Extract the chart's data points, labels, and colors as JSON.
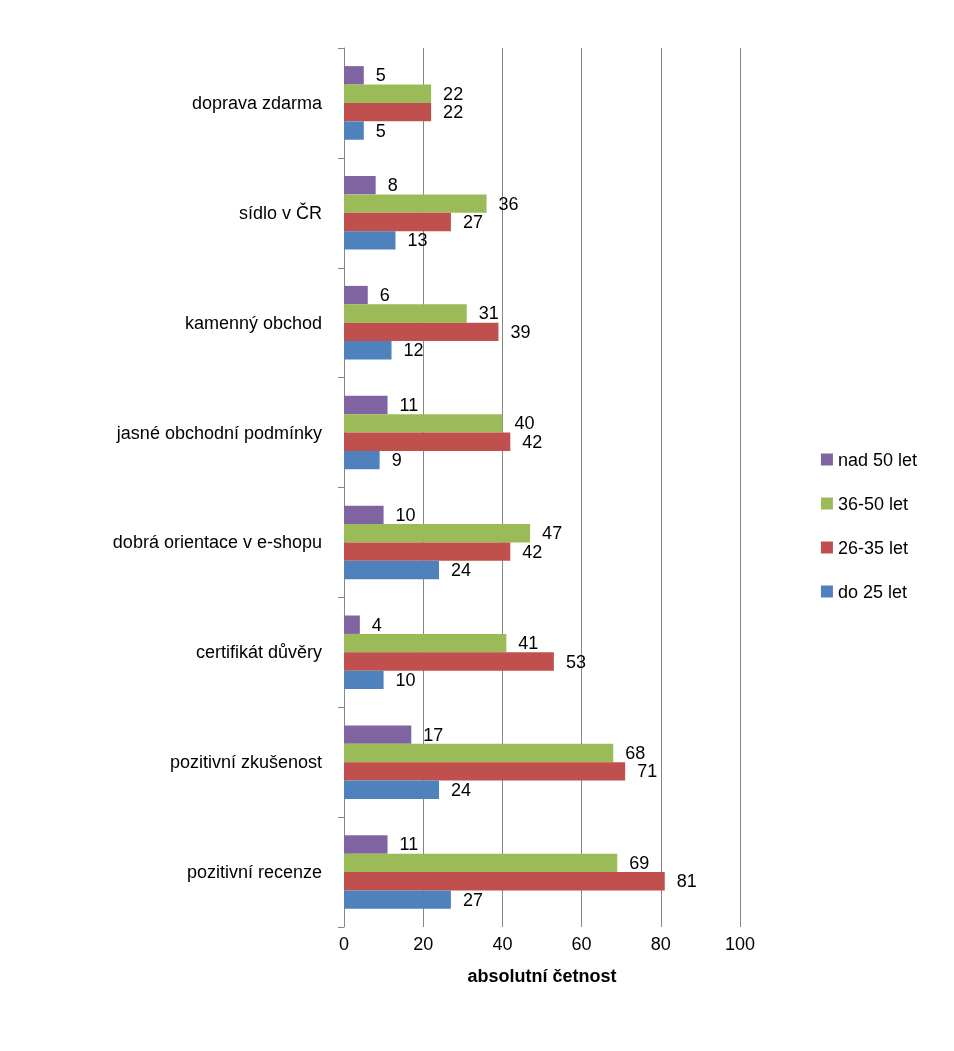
{
  "chart_data": {
    "type": "bar",
    "orientation": "horizontal",
    "xlabel": "absolutní četnost",
    "categories": [
      "doprava zdarma",
      "sídlo v ČR",
      "kamenný obchod",
      "jasné obchodní podmínky",
      "dobrá orientace v e-shopu",
      "certifikát důvěry",
      "pozitivní zkušenost",
      "pozitivní recenze"
    ],
    "series": [
      {
        "name": "nad 50 let",
        "color": "#8064a2",
        "values": [
          5,
          8,
          6,
          11,
          10,
          4,
          17,
          11
        ]
      },
      {
        "name": "36-50 let",
        "color": "#9bbb59",
        "values": [
          22,
          36,
          31,
          40,
          47,
          41,
          68,
          69
        ]
      },
      {
        "name": "26-35 let",
        "color": "#c0504d",
        "values": [
          22,
          27,
          39,
          42,
          42,
          53,
          71,
          81
        ]
      },
      {
        "name": "do 25 let",
        "color": "#4f81bd",
        "values": [
          5,
          13,
          12,
          9,
          24,
          10,
          24,
          27
        ]
      }
    ],
    "xlim": [
      0,
      100
    ],
    "xticks": [
      0,
      20,
      40,
      60,
      80,
      100
    ],
    "grid": "x",
    "legend": "right",
    "data_labels": true
  }
}
